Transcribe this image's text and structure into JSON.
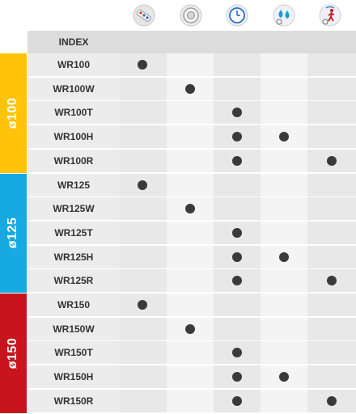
{
  "header": {
    "index_label": "INDEX",
    "icons": [
      {
        "name": "remote-control-icon"
      },
      {
        "name": "fan-icon"
      },
      {
        "name": "timer-clock-icon"
      },
      {
        "name": "humidity-sensor-icon"
      },
      {
        "name": "motion-sensor-icon"
      }
    ]
  },
  "colors": {
    "group_100": "#ffc40a",
    "group_125": "#17a9e1",
    "group_150": "#c8141d",
    "cell_light": "#f4f4f4",
    "cell_dark": "#e8e8e8",
    "dot": "#3a3a3a"
  },
  "groups": [
    {
      "label": "ø100",
      "color_key": "group_100",
      "rows": [
        {
          "name": "WR100",
          "features": [
            true,
            false,
            false,
            false,
            false
          ]
        },
        {
          "name": "WR100W",
          "features": [
            false,
            true,
            false,
            false,
            false
          ]
        },
        {
          "name": "WR100T",
          "features": [
            false,
            false,
            true,
            false,
            false
          ]
        },
        {
          "name": "WR100H",
          "features": [
            false,
            false,
            true,
            true,
            false
          ]
        },
        {
          "name": "WR100R",
          "features": [
            false,
            false,
            true,
            false,
            true
          ]
        }
      ]
    },
    {
      "label": "ø125",
      "color_key": "group_125",
      "rows": [
        {
          "name": "WR125",
          "features": [
            true,
            false,
            false,
            false,
            false
          ]
        },
        {
          "name": "WR125W",
          "features": [
            false,
            true,
            false,
            false,
            false
          ]
        },
        {
          "name": "WR125T",
          "features": [
            false,
            false,
            true,
            false,
            false
          ]
        },
        {
          "name": "WR125H",
          "features": [
            false,
            false,
            true,
            true,
            false
          ]
        },
        {
          "name": "WR125R",
          "features": [
            false,
            false,
            true,
            false,
            true
          ]
        }
      ]
    },
    {
      "label": "ø150",
      "color_key": "group_150",
      "rows": [
        {
          "name": "WR150",
          "features": [
            true,
            false,
            false,
            false,
            false
          ]
        },
        {
          "name": "WR150W",
          "features": [
            false,
            true,
            false,
            false,
            false
          ]
        },
        {
          "name": "WR150T",
          "features": [
            false,
            false,
            true,
            false,
            false
          ]
        },
        {
          "name": "WR150H",
          "features": [
            false,
            false,
            true,
            true,
            false
          ]
        },
        {
          "name": "WR150R",
          "features": [
            false,
            false,
            true,
            false,
            true
          ]
        }
      ]
    }
  ]
}
